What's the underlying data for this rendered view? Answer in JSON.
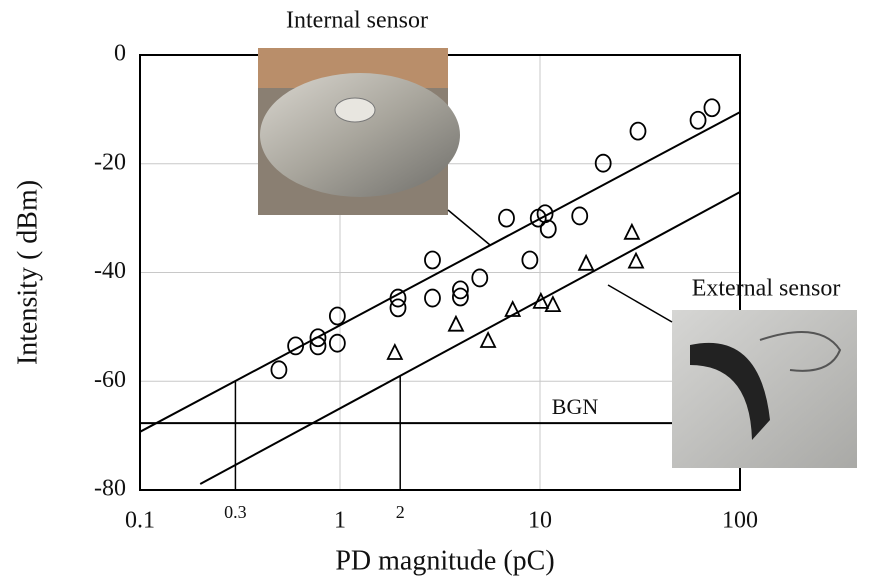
{
  "chart_data": {
    "type": "scatter",
    "xlabel": "PD magnitude (pC)",
    "ylabel": "Intensity ( dBm)",
    "xscale": "log",
    "xlim": [
      0.1,
      100
    ],
    "xticks": [
      0.1,
      1,
      10,
      100
    ],
    "ylim": [
      -80,
      0
    ],
    "yticks": [
      0,
      -20,
      -40,
      -60,
      -80
    ],
    "grid": true,
    "series": [
      {
        "marker": "circle",
        "color": "#000000",
        "x": [
          0.495,
          0.6,
          0.776,
          0.776,
          0.97,
          0.97,
          1.95,
          1.95,
          2.9,
          2.9,
          4,
          4,
          5,
          6.8,
          8.9,
          9.8,
          10.6,
          11,
          15.8,
          20.7,
          30.9,
          61.7,
          72.4
        ],
        "values": [
          -57.9,
          -53.5,
          -52,
          -53.5,
          -48,
          -53,
          -44.7,
          -46.5,
          -37.7,
          -44.7,
          -43.2,
          -44.5,
          -41,
          -30,
          -37.7,
          -30,
          -29.2,
          -32,
          -29.6,
          -19.9,
          -14,
          -12,
          -9.7
        ]
      },
      {
        "marker": "triangle",
        "color": "#000000",
        "x": [
          1.88,
          3.8,
          5.5,
          7.3,
          10.1,
          11.6,
          17,
          28.8,
          30.2
        ],
        "values": [
          -54.8,
          -49.6,
          -52.6,
          -46.9,
          -45.4,
          -46,
          -38.4,
          -32.7,
          -38
        ]
      }
    ],
    "fit_lines": [
      {
        "x": [
          0.1,
          100
        ],
        "values": [
          -69.3,
          -10.5
        ]
      },
      {
        "x": [
          0.2,
          100
        ],
        "values": [
          -78.9,
          -25.2
        ]
      }
    ],
    "reference_line": {
      "label": "BGN",
      "value": -67.7
    },
    "markers": [
      {
        "x": 0.3,
        "y": -59.9
      },
      {
        "x": 2,
        "y": -59
      }
    ],
    "annotations": [
      "Internal sensor",
      "External sensor"
    ]
  }
}
